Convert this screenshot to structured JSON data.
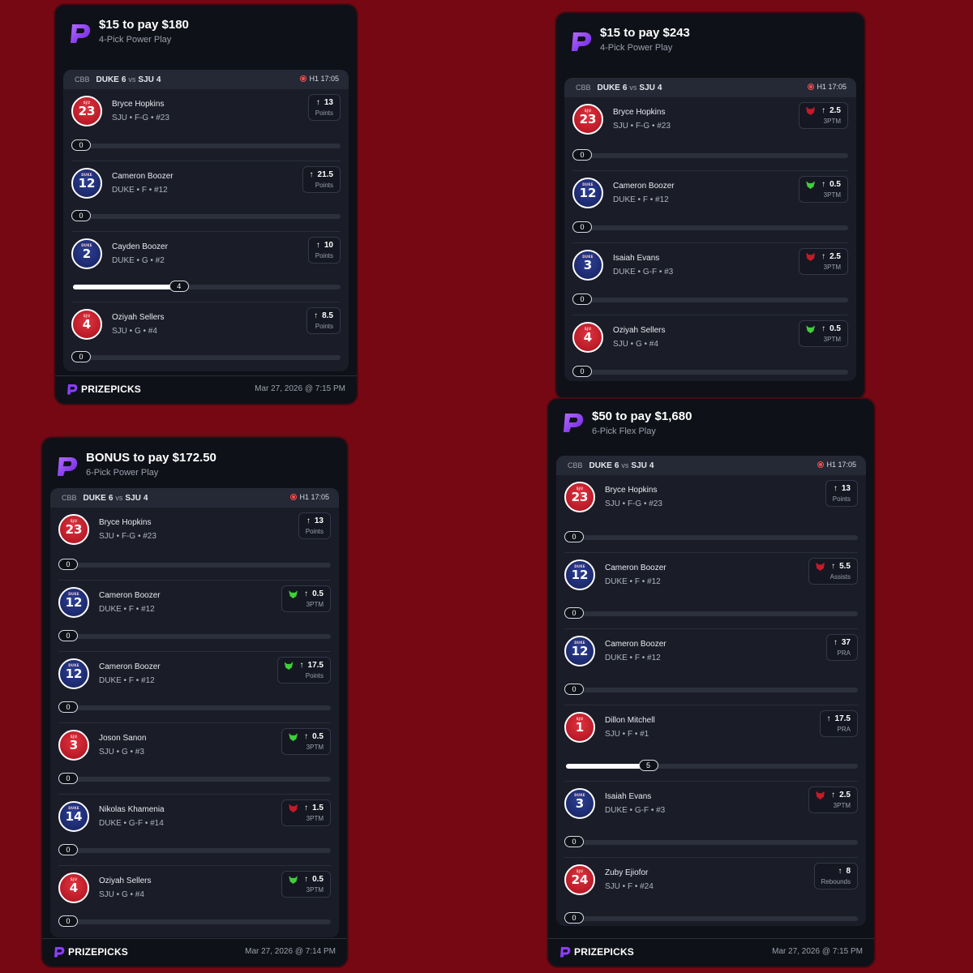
{
  "cards": [
    {
      "title": "$15 to pay $180",
      "subtitle": "4-Pick Power Play",
      "game": {
        "league": "CBB",
        "team_a": "DUKE",
        "score_a": "6",
        "vs": "vs",
        "team_b": "SJU",
        "score_b": "4",
        "clock": "H1 17:05"
      },
      "picks": [
        {
          "jersey_number": "23",
          "jersey_tag": "SJU",
          "jersey_color": "red",
          "name": "Bryce Hopkins",
          "info": "SJU • F-G • #23",
          "line": "13",
          "stat": "Points",
          "badge": "none",
          "progress_value": "0"
        },
        {
          "jersey_number": "12",
          "jersey_tag": "DUKE",
          "jersey_color": "blue",
          "name": "Cameron Boozer",
          "info": "DUKE • F • #12",
          "line": "21.5",
          "stat": "Points",
          "badge": "none",
          "progress_value": "0"
        },
        {
          "jersey_number": "2",
          "jersey_tag": "DUKE",
          "jersey_color": "blue",
          "name": "Cayden Boozer",
          "info": "DUKE • G • #2",
          "line": "10",
          "stat": "Points",
          "badge": "none",
          "progress_value": "4"
        },
        {
          "jersey_number": "4",
          "jersey_tag": "SJU",
          "jersey_color": "red",
          "name": "Oziyah Sellers",
          "info": "SJU • G • #4",
          "line": "8.5",
          "stat": "Points",
          "badge": "none",
          "progress_value": "0"
        }
      ],
      "footer": {
        "brand": "PRIZEPICKS",
        "timestamp": "Mar 27, 2026 @ 7:15 PM"
      }
    },
    {
      "title": "$15 to pay $243",
      "subtitle": "4-Pick Power Play",
      "game": {
        "league": "CBB",
        "team_a": "DUKE",
        "score_a": "6",
        "vs": "vs",
        "team_b": "SJU",
        "score_b": "4",
        "clock": "H1 17:05"
      },
      "picks": [
        {
          "jersey_number": "23",
          "jersey_tag": "SJU",
          "jersey_color": "red",
          "name": "Bryce Hopkins",
          "info": "SJU • F-G • #23",
          "line": "2.5",
          "stat": "3PTM",
          "badge": "demon",
          "progress_value": "0"
        },
        {
          "jersey_number": "12",
          "jersey_tag": "DUKE",
          "jersey_color": "blue",
          "name": "Cameron Boozer",
          "info": "DUKE • F • #12",
          "line": "0.5",
          "stat": "3PTM",
          "badge": "goblin",
          "progress_value": "0"
        },
        {
          "jersey_number": "3",
          "jersey_tag": "DUKE",
          "jersey_color": "blue",
          "name": "Isaiah Evans",
          "info": "DUKE • G-F • #3",
          "line": "2.5",
          "stat": "3PTM",
          "badge": "demon",
          "progress_value": "0"
        },
        {
          "jersey_number": "4",
          "jersey_tag": "SJU",
          "jersey_color": "red",
          "name": "Oziyah Sellers",
          "info": "SJU • G • #4",
          "line": "0.5",
          "stat": "3PTM",
          "badge": "goblin",
          "progress_value": "0"
        }
      ],
      "footer": null
    },
    {
      "title": "BONUS to pay $172.50",
      "subtitle": "6-Pick Power Play",
      "game": {
        "league": "CBB",
        "team_a": "DUKE",
        "score_a": "6",
        "vs": "vs",
        "team_b": "SJU",
        "score_b": "4",
        "clock": "H1 17:05"
      },
      "picks": [
        {
          "jersey_number": "23",
          "jersey_tag": "SJU",
          "jersey_color": "red",
          "name": "Bryce Hopkins",
          "info": "SJU • F-G • #23",
          "line": "13",
          "stat": "Points",
          "badge": "none",
          "progress_value": "0"
        },
        {
          "jersey_number": "12",
          "jersey_tag": "DUKE",
          "jersey_color": "blue",
          "name": "Cameron Boozer",
          "info": "DUKE • F • #12",
          "line": "0.5",
          "stat": "3PTM",
          "badge": "goblin",
          "progress_value": "0"
        },
        {
          "jersey_number": "12",
          "jersey_tag": "DUKE",
          "jersey_color": "blue",
          "name": "Cameron Boozer",
          "info": "DUKE • F • #12",
          "line": "17.5",
          "stat": "Points",
          "badge": "goblin",
          "progress_value": "0"
        },
        {
          "jersey_number": "3",
          "jersey_tag": "SJU",
          "jersey_color": "red",
          "name": "Joson Sanon",
          "info": "SJU • G • #3",
          "line": "0.5",
          "stat": "3PTM",
          "badge": "goblin",
          "progress_value": "0"
        },
        {
          "jersey_number": "14",
          "jersey_tag": "DUKE",
          "jersey_color": "blue",
          "name": "Nikolas Khamenia",
          "info": "DUKE • G-F • #14",
          "line": "1.5",
          "stat": "3PTM",
          "badge": "demon",
          "progress_value": "0"
        },
        {
          "jersey_number": "4",
          "jersey_tag": "SJU",
          "jersey_color": "red",
          "name": "Oziyah Sellers",
          "info": "SJU • G • #4",
          "line": "0.5",
          "stat": "3PTM",
          "badge": "goblin",
          "progress_value": "0"
        }
      ],
      "footer": {
        "brand": "PRIZEPICKS",
        "timestamp": "Mar 27, 2026 @ 7:14 PM"
      }
    },
    {
      "title": "$50 to pay $1,680",
      "subtitle": "6-Pick Flex Play",
      "game": {
        "league": "CBB",
        "team_a": "DUKE",
        "score_a": "6",
        "vs": "vs",
        "team_b": "SJU",
        "score_b": "4",
        "clock": "H1 17:05"
      },
      "picks": [
        {
          "jersey_number": "23",
          "jersey_tag": "SJU",
          "jersey_color": "red",
          "name": "Bryce Hopkins",
          "info": "SJU • F-G • #23",
          "line": "13",
          "stat": "Points",
          "badge": "none",
          "progress_value": "0"
        },
        {
          "jersey_number": "12",
          "jersey_tag": "DUKE",
          "jersey_color": "blue",
          "name": "Cameron Boozer",
          "info": "DUKE • F • #12",
          "line": "5.5",
          "stat": "Assists",
          "badge": "demon",
          "progress_value": "0"
        },
        {
          "jersey_number": "12",
          "jersey_tag": "DUKE",
          "jersey_color": "blue",
          "name": "Cameron Boozer",
          "info": "DUKE • F • #12",
          "line": "37",
          "stat": "PRA",
          "badge": "none",
          "progress_value": "0"
        },
        {
          "jersey_number": "1",
          "jersey_tag": "SJU",
          "jersey_color": "red",
          "name": "Dillon Mitchell",
          "info": "SJU • F • #1",
          "line": "17.5",
          "stat": "PRA",
          "badge": "none",
          "progress_value": "5"
        },
        {
          "jersey_number": "3",
          "jersey_tag": "DUKE",
          "jersey_color": "blue",
          "name": "Isaiah Evans",
          "info": "DUKE • G-F • #3",
          "line": "2.5",
          "stat": "3PTM",
          "badge": "demon",
          "progress_value": "0"
        },
        {
          "jersey_number": "24",
          "jersey_tag": "SJU",
          "jersey_color": "red",
          "name": "Zuby Ejiofor",
          "info": "SJU • F • #24",
          "line": "8",
          "stat": "Rebounds",
          "badge": "none",
          "progress_value": "0"
        }
      ],
      "footer": {
        "brand": "PRIZEPICKS",
        "timestamp": "Mar 27, 2026 @ 7:15 PM"
      }
    }
  ],
  "icons": {
    "logo": "prizepicks-logo-icon",
    "arrow": "arrow-up-icon",
    "live": "live-dot-icon",
    "demon": "demon-icon",
    "goblin": "goblin-icon"
  },
  "colors": {
    "background": "#760813",
    "card": "#0f1118",
    "panel": "#1a1d28",
    "accent": "#8a3ffc",
    "demon": "#c61a28",
    "goblin": "#3fcf3a"
  }
}
